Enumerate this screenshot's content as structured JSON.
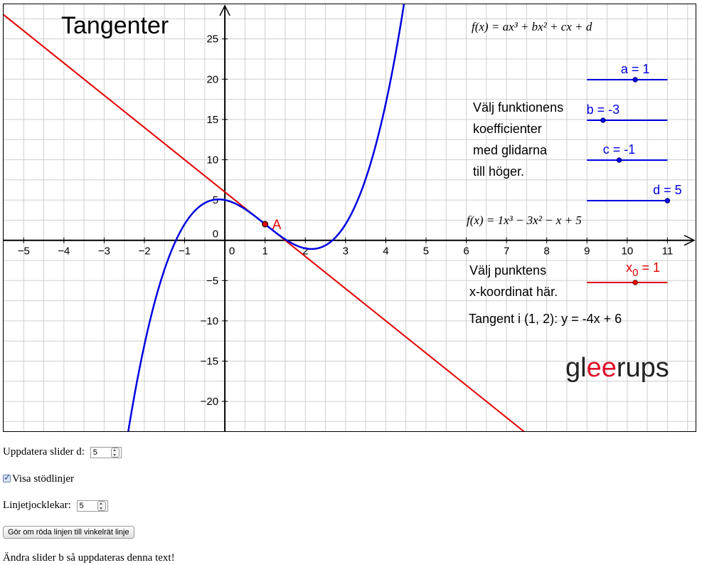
{
  "applet": {
    "title": "Tangenter",
    "formula_general": "f(x) = ax³ + bx² + cx + d",
    "formula_specific": "f(x) = 1x³ − 3x² − x + 5",
    "instruction_coeff": [
      "Välj funktionens",
      "koefficienter",
      "med glidarna",
      "till höger."
    ],
    "instruction_point": [
      "Välj punktens",
      "x-koordinat här."
    ],
    "tangent_text": "Tangent i (1, 2): y = -4x + 6",
    "point_label": "A",
    "logo": {
      "pre": "gl",
      "mid": "ee",
      "post": "rups"
    },
    "sliders": [
      {
        "label": "a = 1",
        "value": 1,
        "min": -5,
        "max": 5
      },
      {
        "label": "b = -3",
        "value": -3,
        "min": -5,
        "max": 5
      },
      {
        "label": "c = -1",
        "value": -1,
        "min": -5,
        "max": 5
      },
      {
        "label": "d = 5",
        "value": 5,
        "min": -5,
        "max": 5
      }
    ],
    "x0_slider": {
      "label_main": "x",
      "label_sub": "0",
      "label_rest": " = 1",
      "value": 1,
      "min": -5,
      "max": 5
    },
    "colors": {
      "curve": "#0000e0",
      "tangent": "#e00000",
      "slider": "#0000e0",
      "logo_dark": "#222222",
      "logo_red": "#e0102a"
    }
  },
  "chart_data": {
    "type": "line",
    "function": {
      "a": 1,
      "b": -3,
      "c": -1,
      "d": 5
    },
    "tangent": {
      "x0": 1,
      "y0": 2,
      "slope": -4,
      "intercept": 6
    },
    "xlim": [
      -5.5,
      11.7
    ],
    "ylim": [
      -23.7,
      29.3
    ],
    "x_ticks": [
      -5,
      -4,
      -3,
      -2,
      -1,
      0,
      1,
      2,
      3,
      4,
      5,
      6,
      7,
      8,
      9,
      10,
      11
    ],
    "y_ticks": [
      -20,
      -15,
      -10,
      -5,
      0,
      5,
      10,
      15,
      20,
      25
    ],
    "grid": true
  },
  "controls": {
    "slider_d_label": "Uppdatera slider d:",
    "slider_d_value": "5",
    "checkbox_label": "Visa stödlinjer",
    "thickness_label": "Linjetjocklekar:",
    "thickness_value": "5",
    "button_label": "Gör om röda linjen till vinkelrät linje",
    "footer_text": "Ändra slider b så uppdateras denna text!"
  }
}
